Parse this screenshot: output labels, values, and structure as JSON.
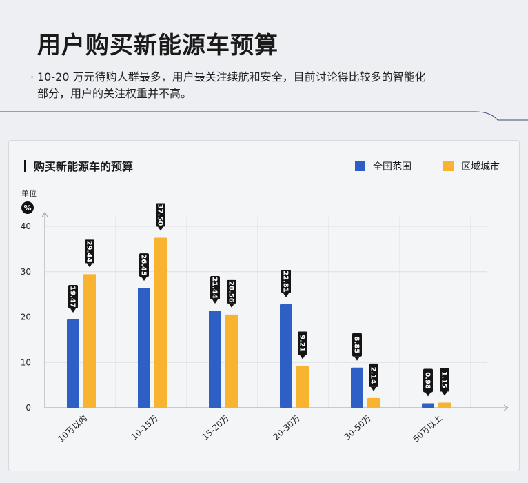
{
  "header": {
    "title": "用户购买新能源车预算",
    "bullet_line1": "10-20 万元待购人群最多，用户最关注续航和安全，目前讨论得比较多的智能化",
    "bullet_line2": "部分，用户的关注权重并不高。"
  },
  "chart_data": {
    "type": "bar",
    "title": "购买新能源车的预算",
    "unit_label": "单位",
    "unit_symbol": "%",
    "categories": [
      "10万以内",
      "10-15万",
      "15-20万",
      "20-30万",
      "30-50万",
      "50万以上"
    ],
    "series": [
      {
        "name": "全国范围",
        "color": "#2d5fc4",
        "values": [
          19.47,
          26.45,
          21.44,
          22.81,
          8.85,
          0.98
        ]
      },
      {
        "name": "区域城市",
        "color": "#f8b431",
        "values": [
          29.44,
          37.5,
          20.56,
          9.21,
          2.14,
          1.15
        ]
      }
    ],
    "yticks": [
      0,
      10,
      20,
      30,
      40
    ],
    "ylim": [
      0,
      40
    ],
    "grid": true,
    "legend_position": "top-right"
  }
}
